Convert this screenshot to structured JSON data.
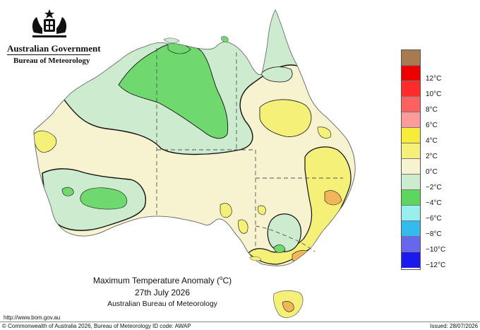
{
  "agency": {
    "government": "Australian Government",
    "bureau": "Bureau of Meteorology",
    "crest": "commonwealth-coat-of-arms-icon"
  },
  "map": {
    "title_prefix": "Maximum Temperature Anomaly (",
    "title_unit_degree": "o",
    "title_unit_suffix": "C)",
    "date": "27th July 2026",
    "source": "Australian Bureau of Meteorology"
  },
  "legend": [
    {
      "label": "",
      "color": "#a87a50"
    },
    {
      "label": "12°C",
      "color": "#ee0000"
    },
    {
      "label": "10°C",
      "color": "#ff2a2a"
    },
    {
      "label": "8°C",
      "color": "#ff6060"
    },
    {
      "label": "6°C",
      "color": "#ff9a9a"
    },
    {
      "label": "4°C",
      "color": "#f8ec3a"
    },
    {
      "label": "2°C",
      "color": "#f4f078"
    },
    {
      "label": "0°C",
      "color": "#f7f3d0"
    },
    {
      "label": "−2°C",
      "color": "#cdeccf"
    },
    {
      "label": "−4°C",
      "color": "#5cd65c"
    },
    {
      "label": "−6°C",
      "color": "#99eeee"
    },
    {
      "label": "−8°C",
      "color": "#33bbee"
    },
    {
      "label": "−10°C",
      "color": "#6666ee"
    },
    {
      "label": "−12°C",
      "color": "#1a1aee"
    }
  ],
  "footer": {
    "url": "http://www.bom.gov.au",
    "copyright": "© Commonwealth of Australia 2026, Bureau of Meteorology",
    "id_code": "ID code: AWAP",
    "issued": "Issued: 28/07/2026"
  }
}
